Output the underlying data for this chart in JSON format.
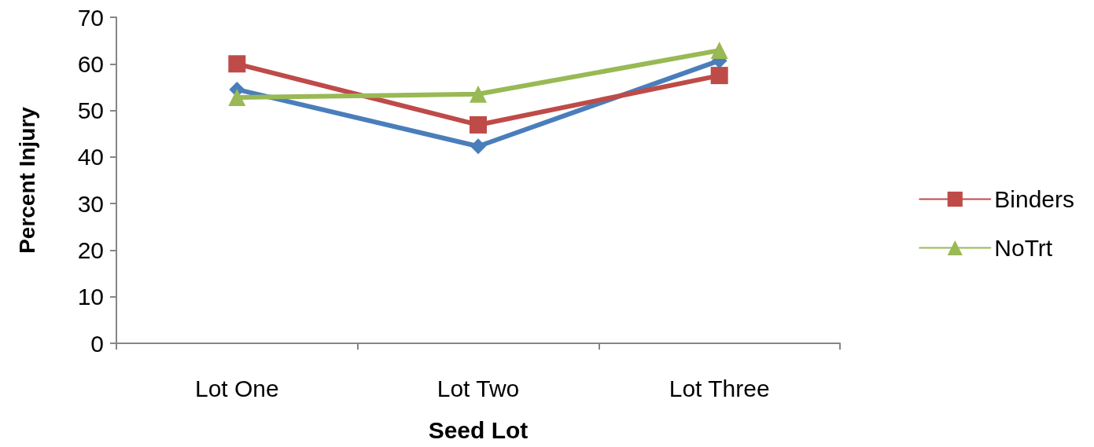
{
  "chart_data": {
    "type": "line",
    "xlabel": "Seed Lot",
    "ylabel": "Percent Injury",
    "categories": [
      "Lot One",
      "Lot Two",
      "Lot Three"
    ],
    "series": [
      {
        "color": "#4a7ebb",
        "marker": "diamond",
        "values": [
          54.5,
          42.3,
          60.7
        ]
      },
      {
        "name": "Binders",
        "color": "#be4b48",
        "marker": "square",
        "values": [
          60,
          46.9,
          57.5
        ]
      },
      {
        "name": "NoTrt",
        "color": "#98b954",
        "marker": "triangle",
        "values": [
          52.8,
          53.5,
          62.9
        ]
      }
    ],
    "ylim": [
      0,
      70
    ],
    "yticks": [
      0,
      10,
      20,
      30,
      40,
      50,
      60,
      70
    ],
    "grid": false,
    "legend": "right"
  }
}
